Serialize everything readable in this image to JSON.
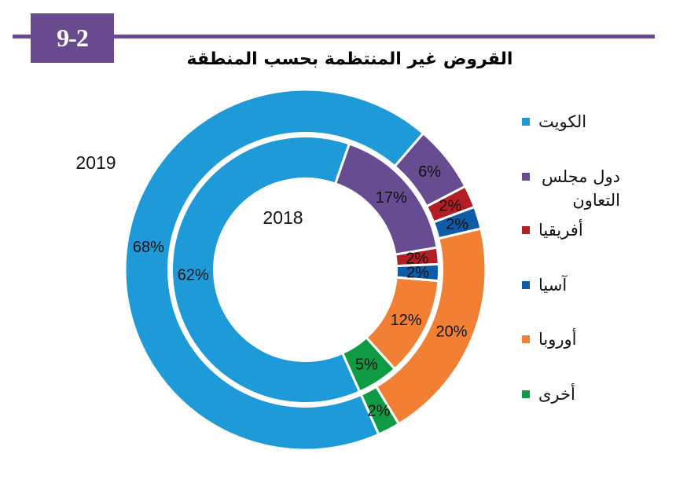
{
  "figure": {
    "number": "9-2",
    "title": "القروض غير المنتظمة بحسب المنطقة"
  },
  "colors": {
    "badge": "#684b8e",
    "rule": "#684b8e"
  },
  "chart_data": {
    "type": "pie",
    "variant": "doughnut",
    "title": "القروض غير المنتظمة بحسب المنطقة",
    "unit": "%",
    "legend": "right",
    "categories": [
      "الكويت",
      "دول مجلس التعاون",
      "أفريقيا",
      "آسيا",
      "أوروبا",
      "أخرى"
    ],
    "colors": [
      "#1e9ad8",
      "#684c91",
      "#b11f25",
      "#0e5ca8",
      "#f28034",
      "#0e9b43"
    ],
    "series": [
      {
        "name": "2019",
        "ring": "outer",
        "values": [
          68,
          6,
          2,
          2,
          20,
          2
        ],
        "labels": [
          "68%",
          "6%",
          "2%",
          "2%",
          "20%",
          "2%"
        ]
      },
      {
        "name": "2018",
        "ring": "inner",
        "values": [
          62,
          17,
          2,
          2,
          12,
          5
        ],
        "labels": [
          "62%",
          "17%",
          "2%",
          "2%",
          "12%",
          "5%"
        ]
      }
    ]
  }
}
